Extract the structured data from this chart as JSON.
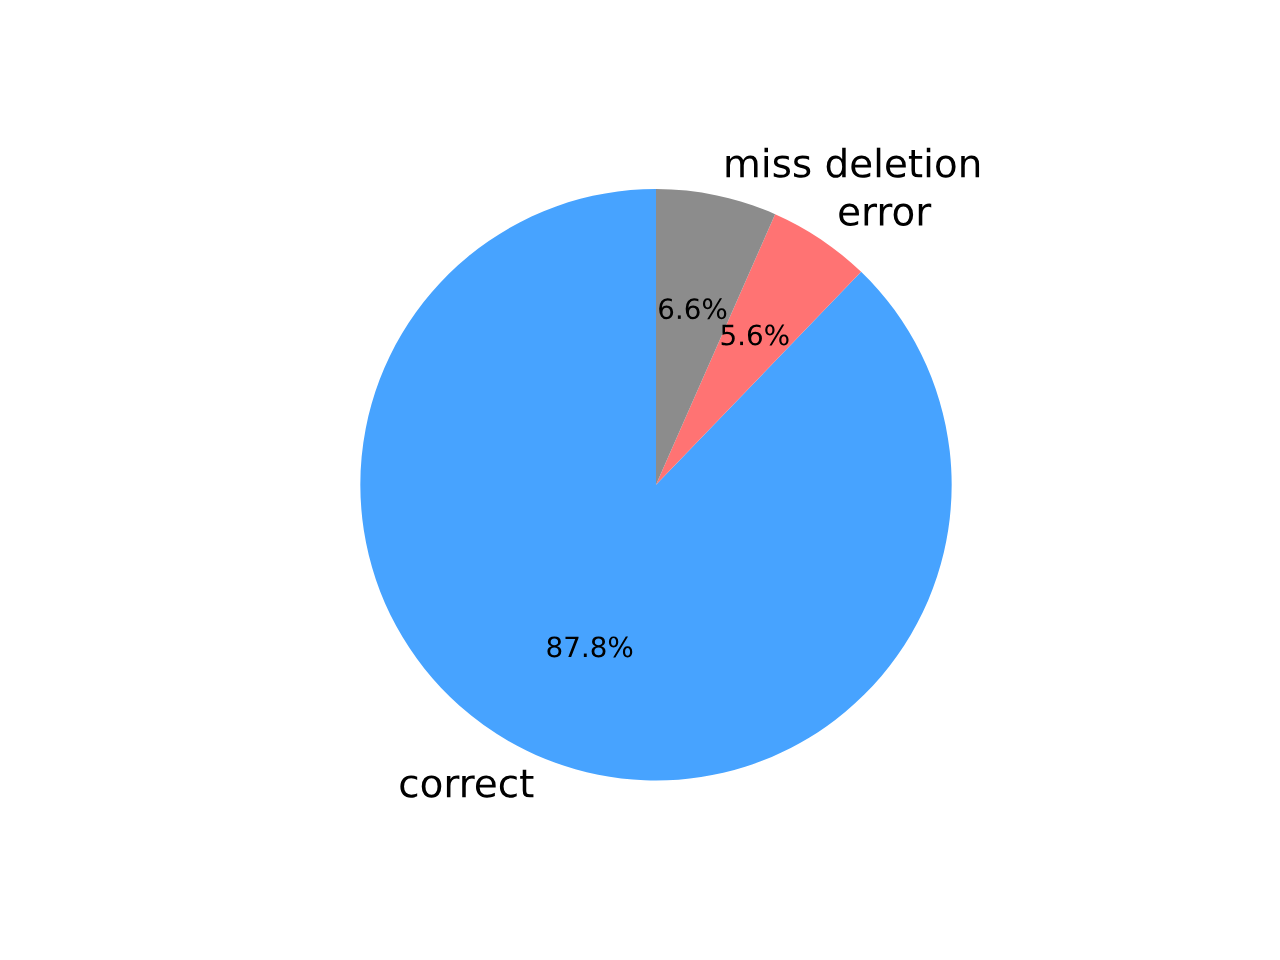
{
  "chart_data": {
    "type": "pie",
    "categories": [
      "correct",
      "error",
      "miss deletion"
    ],
    "values": [
      87.8,
      5.6,
      6.6
    ],
    "colors": [
      "#47a3ff",
      "#ff7373",
      "#8c8c8c"
    ],
    "value_labels": [
      "87.8%",
      "5.6%",
      "6.6%"
    ]
  }
}
